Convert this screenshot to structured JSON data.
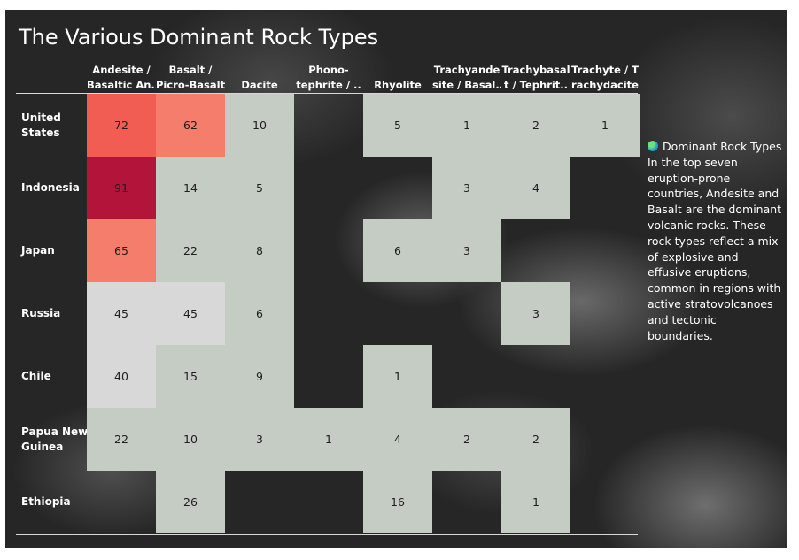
{
  "title": "The Various Dominant Rock Types",
  "colors": {
    "neutral": "#c5ccc3",
    "lightgray": "#d8d8d8",
    "salmon": "#f47d6b",
    "coral": "#f15c53",
    "crimson": "#b2143a"
  },
  "side_note": {
    "icon": "globe-icon",
    "heading": "Dominant Rock Types",
    "body": "In the top seven eruption-prone countries, Andesite and Basalt are the dominant volcanic rocks. These rock types reflect a mix of explosive and effusive eruptions, common in regions with active stratovolcanoes and tectonic boundaries."
  },
  "chart_data": {
    "type": "heatmap",
    "title": "The Various Dominant Rock Types",
    "columns": [
      [
        "Andesite /",
        "Basaltic An.."
      ],
      [
        "Basalt /",
        "Picro-Basalt"
      ],
      [
        "Dacite"
      ],
      [
        "Phono-",
        "tephrite / .."
      ],
      [
        "Rhyolite"
      ],
      [
        "Trachyande",
        "site / Basal.."
      ],
      [
        "Trachybasal",
        "t / Tephrit.."
      ],
      [
        "Trachyte / T",
        "rachydacite"
      ]
    ],
    "rows": [
      "United States",
      "Indonesia",
      "Japan",
      "Russia",
      "Chile",
      "Papua New Guinea",
      "Ethiopia"
    ],
    "row_display": [
      [
        "United",
        "States"
      ],
      [
        "Indonesia"
      ],
      [
        "Japan"
      ],
      [
        "Russia"
      ],
      [
        "Chile"
      ],
      [
        "Papua New",
        "Guinea"
      ],
      [
        "Ethiopia"
      ]
    ],
    "values": [
      [
        72,
        62,
        10,
        null,
        5,
        1,
        2,
        1
      ],
      [
        91,
        14,
        5,
        null,
        null,
        3,
        4,
        null
      ],
      [
        65,
        22,
        8,
        null,
        6,
        3,
        null,
        null
      ],
      [
        45,
        45,
        6,
        null,
        null,
        null,
        3,
        null
      ],
      [
        40,
        15,
        9,
        null,
        1,
        null,
        null,
        null
      ],
      [
        22,
        10,
        3,
        1,
        4,
        2,
        2,
        null
      ],
      [
        null,
        26,
        null,
        null,
        16,
        null,
        1,
        null
      ]
    ]
  }
}
